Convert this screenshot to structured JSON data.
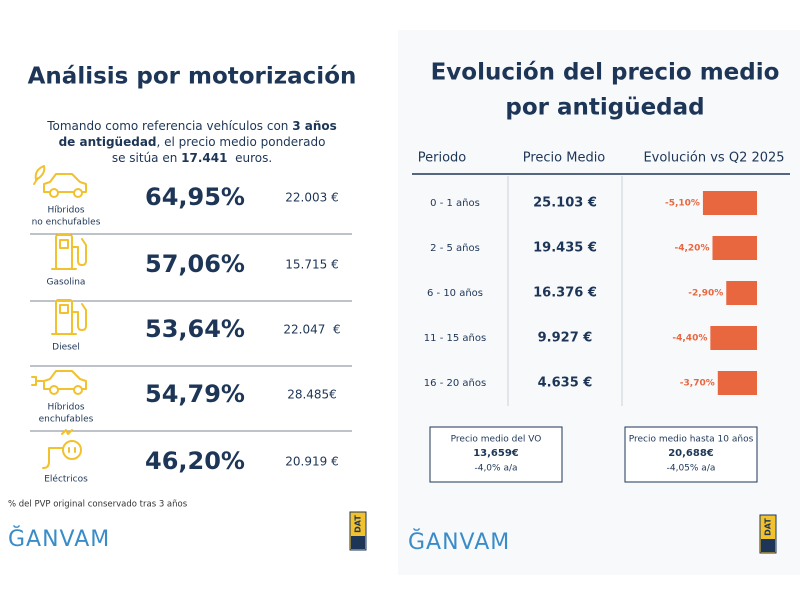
{
  "left": {
    "title": "Análisis por motorización",
    "intro": [
      [
        {
          "text": "Tomando como referencia vehículos con ",
          "bold": false
        },
        {
          "text": "3 años",
          "bold": true
        }
      ],
      [
        {
          "text": "de antigüedad",
          "bold": true
        },
        {
          "text": ", el precio medio ponderado",
          "bold": false
        }
      ],
      [
        {
          "text": "se sitúa en ",
          "bold": false
        },
        {
          "text": "17.441",
          "bold": true
        },
        {
          "text": "  euros.",
          "bold": false
        }
      ]
    ],
    "rows": [
      {
        "label": [
          "Híbridos",
          "no enchufables"
        ],
        "percent": "64,95%",
        "price": "22.003 €",
        "icon": "car"
      },
      {
        "label": [
          "Gasolina"
        ],
        "percent": "57,06%",
        "price": "15.715 €",
        "icon": "pump"
      },
      {
        "label": [
          "Diesel"
        ],
        "percent": "53,64%",
        "price": "22.047  €",
        "icon": "pump"
      },
      {
        "label": [
          "Híbridos",
          "enchufables"
        ],
        "percent": "54,79%",
        "price": "28.485€",
        "icon": "plug-car"
      },
      {
        "label": [
          "Eléctricos"
        ],
        "percent": "46,20%",
        "price": "20.919 €",
        "icon": "electric"
      }
    ],
    "footnote": "% del PVP original conservado tras 3 años",
    "logo": "ĞANVAM",
    "badge": "DAT"
  },
  "right": {
    "title": [
      "Evolución del precio medio",
      "por antigüedad"
    ],
    "headers": [
      "Periodo",
      "Precio Medio",
      "Evolución vs Q2 2025"
    ],
    "rows": [
      {
        "period": "0 - 1 años",
        "price": "25.103 €",
        "change": -5.1,
        "change_label": "-5,10%"
      },
      {
        "period": "2 - 5 años",
        "price": "19.435 €",
        "change": -4.2,
        "change_label": "-4,20%"
      },
      {
        "period": "6 - 10 años",
        "price": "16.376 €",
        "change": -2.9,
        "change_label": "-2,90%"
      },
      {
        "period": "11 - 15 años",
        "price": "9.927 €",
        "change": -4.4,
        "change_label": "-4,40%"
      },
      {
        "period": "16 - 20 años",
        "price": "4.635 €",
        "change": -3.7,
        "change_label": "-3,70%"
      }
    ],
    "bar_color": "#e8673f",
    "boxes": [
      {
        "title": "Precio medio del VO",
        "value": "13,659€",
        "change": "-4,0% a/a"
      },
      {
        "title": "Precio medio hasta 10 años",
        "value": "20,688€",
        "change": "-4,05% a/a"
      }
    ],
    "logo": "ĞANVAM",
    "badge": "DAT"
  }
}
